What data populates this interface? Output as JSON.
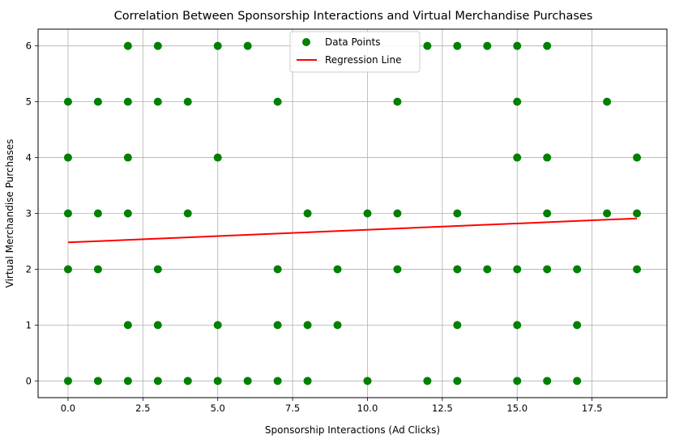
{
  "chart_data": {
    "type": "scatter",
    "title": "Correlation Between Sponsorship Interactions and Virtual Merchandise Purchases",
    "xlabel": "Sponsorship Interactions (Ad Clicks)",
    "ylabel": "Virtual Merchandise Purchases",
    "xlim": [
      -1,
      20
    ],
    "ylim": [
      -0.3,
      6.3
    ],
    "x_ticks": [
      "0.0",
      "2.5",
      "5.0",
      "7.5",
      "10.0",
      "12.5",
      "15.0",
      "17.5"
    ],
    "x_tick_values": [
      0,
      2.5,
      5,
      7.5,
      10,
      12.5,
      15,
      17.5
    ],
    "y_ticks": [
      "0",
      "1",
      "2",
      "3",
      "4",
      "5",
      "6"
    ],
    "y_tick_values": [
      0,
      1,
      2,
      3,
      4,
      5,
      6
    ],
    "grid": true,
    "legend_position": "top-center",
    "series": [
      {
        "name": "Data Points",
        "kind": "scatter",
        "color": "#008000",
        "points": [
          [
            2,
            6
          ],
          [
            3,
            6
          ],
          [
            5,
            6
          ],
          [
            6,
            6
          ],
          [
            12,
            6
          ],
          [
            13,
            6
          ],
          [
            14,
            6
          ],
          [
            15,
            6
          ],
          [
            16,
            6
          ],
          [
            0,
            5
          ],
          [
            1,
            5
          ],
          [
            2,
            5
          ],
          [
            3,
            5
          ],
          [
            4,
            5
          ],
          [
            7,
            5
          ],
          [
            11,
            5
          ],
          [
            15,
            5
          ],
          [
            18,
            5
          ],
          [
            0,
            4
          ],
          [
            2,
            4
          ],
          [
            5,
            4
          ],
          [
            15,
            4
          ],
          [
            16,
            4
          ],
          [
            19,
            4
          ],
          [
            0,
            3
          ],
          [
            1,
            3
          ],
          [
            2,
            3
          ],
          [
            4,
            3
          ],
          [
            8,
            3
          ],
          [
            10,
            3
          ],
          [
            11,
            3
          ],
          [
            13,
            3
          ],
          [
            16,
            3
          ],
          [
            18,
            3
          ],
          [
            19,
            3
          ],
          [
            0,
            2
          ],
          [
            1,
            2
          ],
          [
            3,
            2
          ],
          [
            7,
            2
          ],
          [
            9,
            2
          ],
          [
            11,
            2
          ],
          [
            13,
            2
          ],
          [
            14,
            2
          ],
          [
            15,
            2
          ],
          [
            16,
            2
          ],
          [
            17,
            2
          ],
          [
            19,
            2
          ],
          [
            2,
            1
          ],
          [
            3,
            1
          ],
          [
            5,
            1
          ],
          [
            7,
            1
          ],
          [
            8,
            1
          ],
          [
            9,
            1
          ],
          [
            13,
            1
          ],
          [
            15,
            1
          ],
          [
            17,
            1
          ],
          [
            0,
            0
          ],
          [
            1,
            0
          ],
          [
            2,
            0
          ],
          [
            3,
            0
          ],
          [
            4,
            0
          ],
          [
            5,
            0
          ],
          [
            6,
            0
          ],
          [
            7,
            0
          ],
          [
            8,
            0
          ],
          [
            10,
            0
          ],
          [
            12,
            0
          ],
          [
            13,
            0
          ],
          [
            15,
            0
          ],
          [
            16,
            0
          ],
          [
            17,
            0
          ]
        ]
      },
      {
        "name": "Regression Line",
        "kind": "line",
        "color": "#ff0000",
        "points": [
          [
            0,
            2.48
          ],
          [
            19,
            2.91
          ]
        ]
      }
    ]
  }
}
